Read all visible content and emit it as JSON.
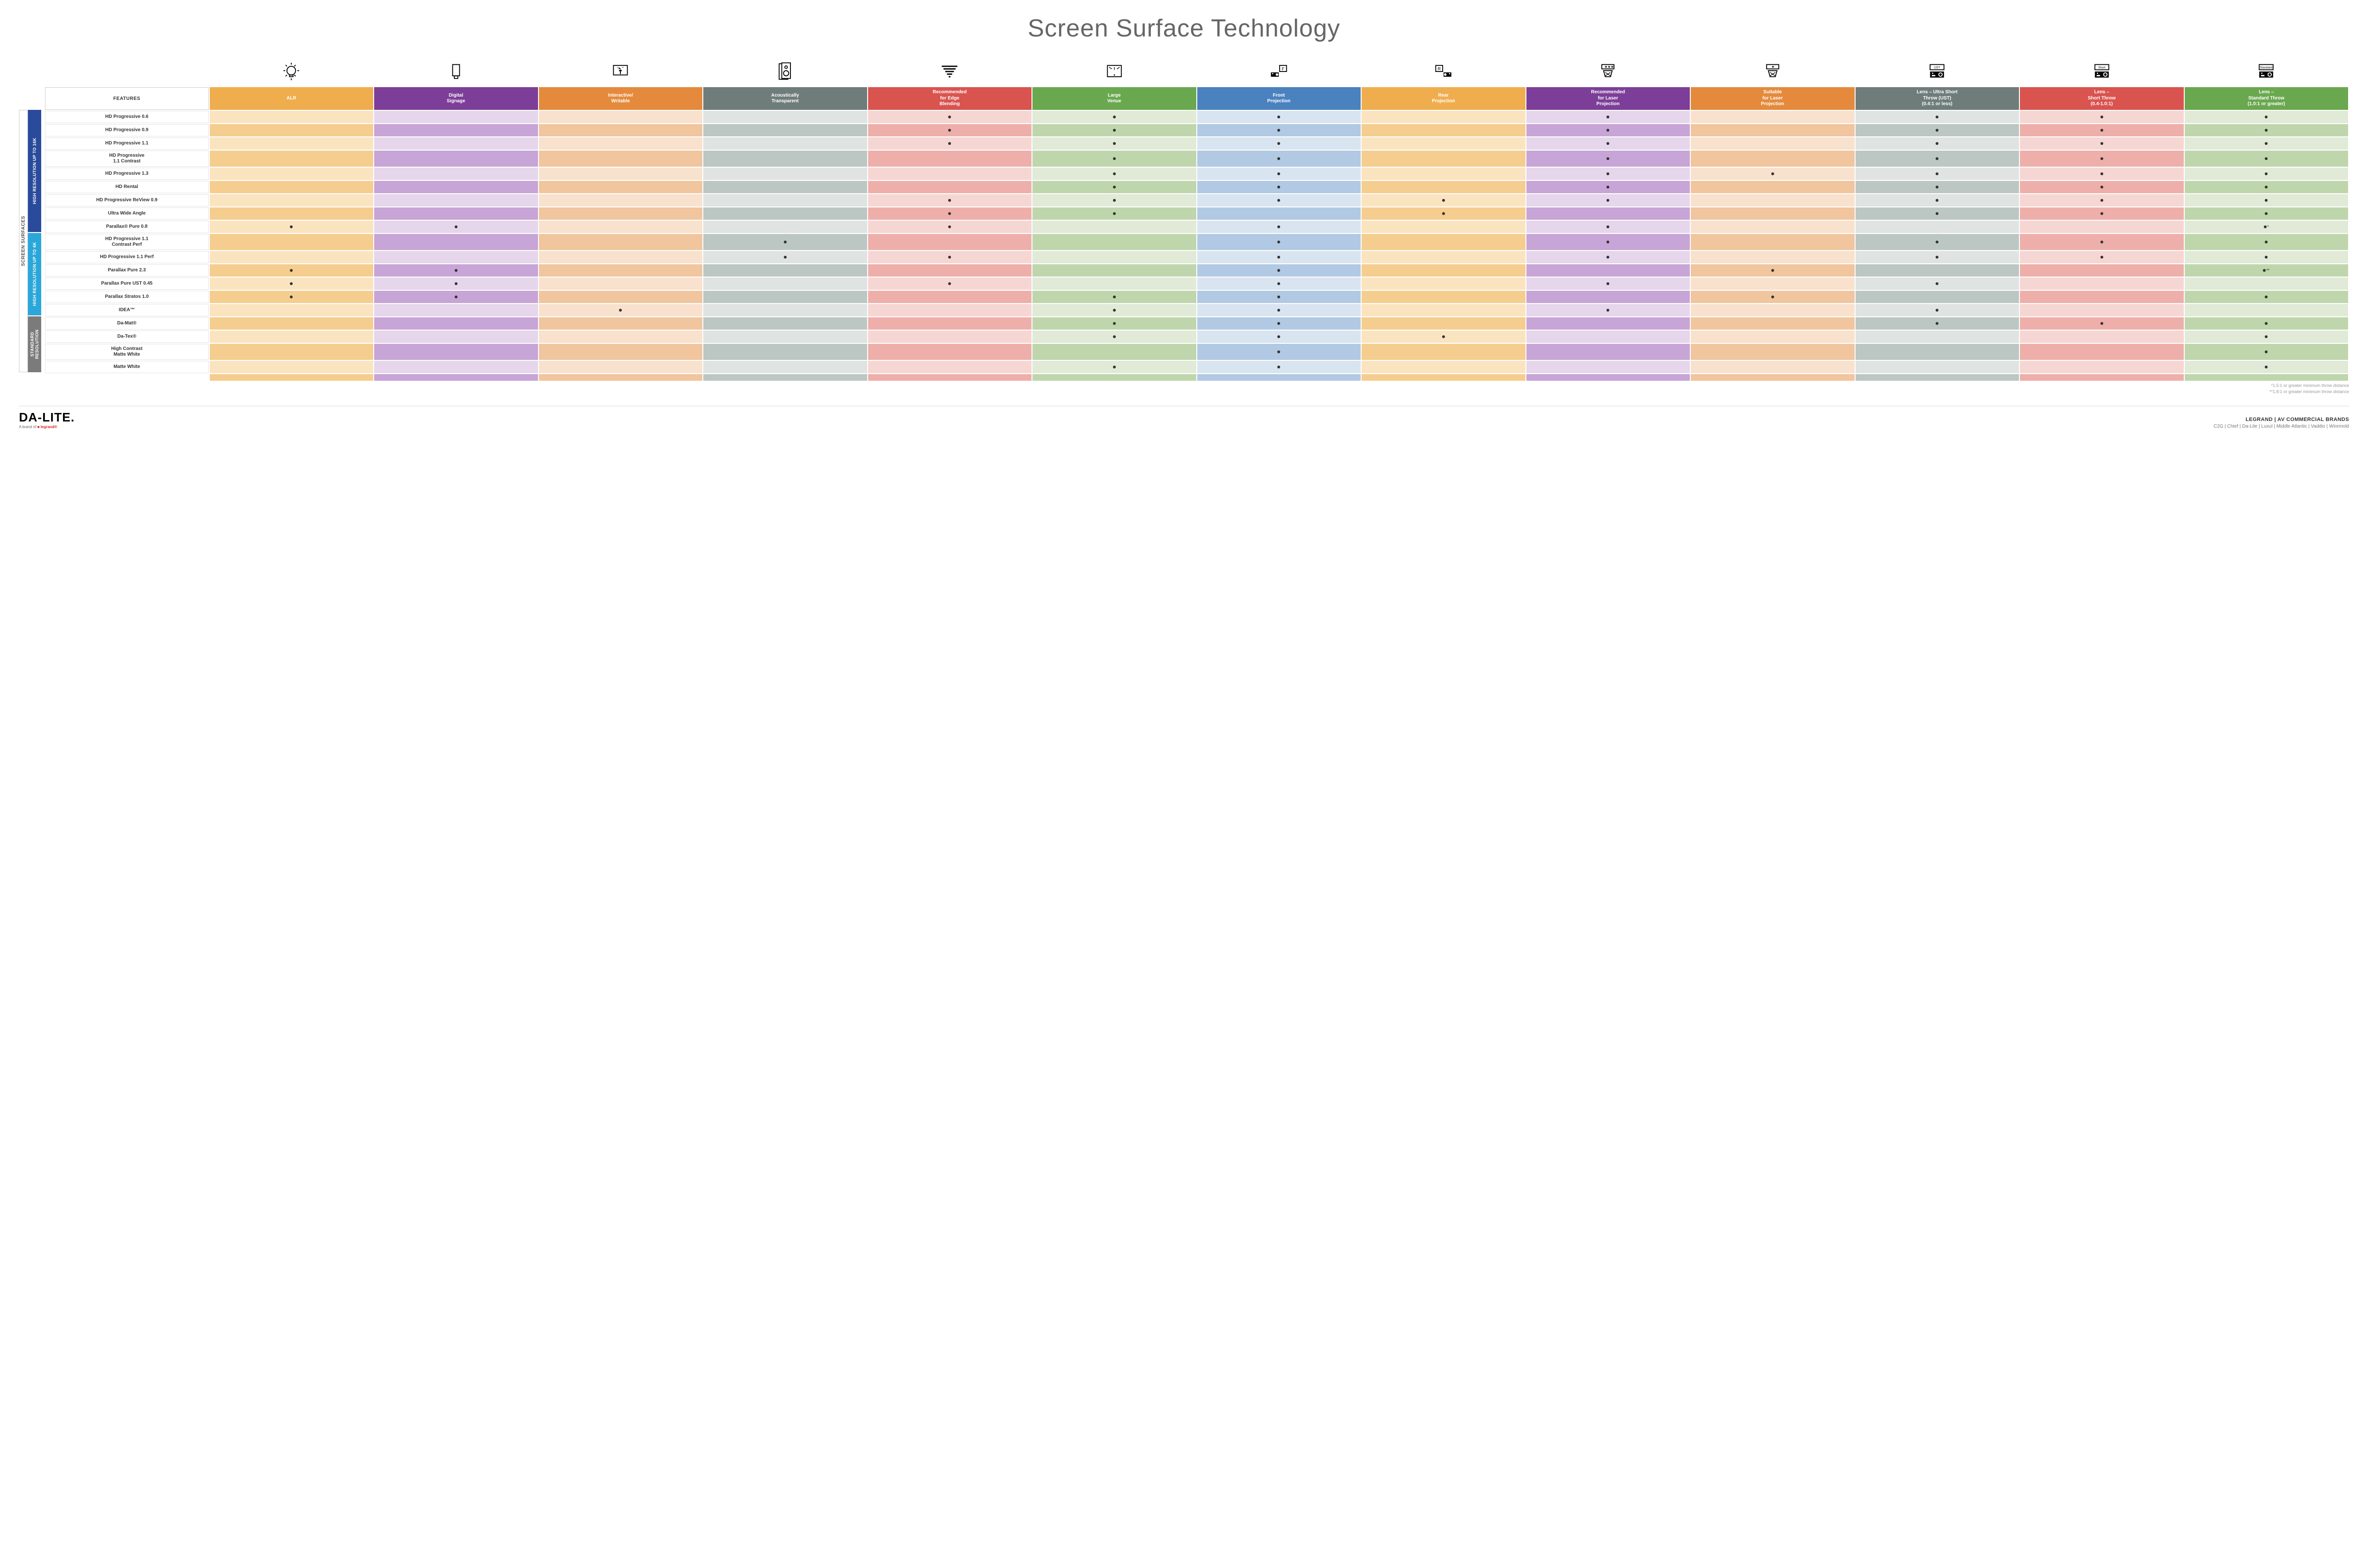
{
  "title": "Screen Surface Technology",
  "features_label": "FEATURES",
  "side_label": "SCREEN SURFACES",
  "colors": {
    "group_16k": "#2a4b9b",
    "group_4k": "#2aa7d8",
    "group_std": "#7b7b7b"
  },
  "columns": [
    {
      "key": "alr",
      "label": "ALR",
      "header_bg": "#f0ad4e",
      "light": "#fae4c0",
      "dark": "#f5cd8e",
      "icon": "bulb"
    },
    {
      "key": "signage",
      "label": "Digital\nSignage",
      "header_bg": "#7c3e98",
      "light": "#e5d6eb",
      "dark": "#c7a5d6",
      "icon": "signage"
    },
    {
      "key": "writable",
      "label": "Interactive/\nWritable",
      "header_bg": "#e58a3c",
      "light": "#f8e1cd",
      "dark": "#f1c59d",
      "icon": "touch"
    },
    {
      "key": "acoustic",
      "label": "Acoustically\nTransparent",
      "header_bg": "#6f7d7a",
      "light": "#dfe3e2",
      "dark": "#bcc7c4",
      "icon": "speaker"
    },
    {
      "key": "edge",
      "label": "Recommended\nfor Edge\nBlending",
      "header_bg": "#d9534f",
      "light": "#f6d6d3",
      "dark": "#eeafaa",
      "icon": "blend"
    },
    {
      "key": "large",
      "label": "Large\nVenue",
      "header_bg": "#6aa84f",
      "light": "#e0ead7",
      "dark": "#bfd6ad",
      "icon": "venue"
    },
    {
      "key": "front",
      "label": "Front\nProjection",
      "header_bg": "#4a81bf",
      "light": "#d9e4f1",
      "dark": "#b1c9e3",
      "icon": "front"
    },
    {
      "key": "rear",
      "label": "Rear\nProjection",
      "header_bg": "#f0ad4e",
      "light": "#fae4c0",
      "dark": "#f5cd8e",
      "icon": "rear"
    },
    {
      "key": "reclaser",
      "label": "Recommended\nfor Laser\nProjection",
      "header_bg": "#7c3e98",
      "light": "#e5d6eb",
      "dark": "#c7a5d6",
      "icon": "laser_rec"
    },
    {
      "key": "suitlaser",
      "label": "Suitable\nfor Laser\nProjection",
      "header_bg": "#e58a3c",
      "light": "#f8e1cd",
      "dark": "#f1c59d",
      "icon": "laser_suit"
    },
    {
      "key": "ust",
      "label": "Lens – Ultra Short\nThrow (UST)\n(0.4:1 or less)",
      "header_bg": "#6f7d7a",
      "light": "#dfe3e2",
      "dark": "#bcc7c4",
      "icon": "ust"
    },
    {
      "key": "short",
      "label": "Lens –\nShort Throw\n(0.4-1.0:1)",
      "header_bg": "#d9534f",
      "light": "#f6d6d3",
      "dark": "#eeafaa",
      "icon": "short"
    },
    {
      "key": "std",
      "label": "Lens –\nStandard Throw\n(1.0:1 or greater)",
      "header_bg": "#6aa84f",
      "light": "#e0ead7",
      "dark": "#bfd6ad",
      "icon": "standard"
    }
  ],
  "groups": [
    {
      "label": "HIGH RESOLUTION UP TO 16K",
      "color_key": "group_16k",
      "rows": [
        {
          "label": "HD Progressive 0.6",
          "marks": {
            "edge": "•",
            "large": "•",
            "front": "•",
            "reclaser": "•",
            "ust": "•",
            "short": "•",
            "std": "•"
          }
        },
        {
          "label": "HD Progressive 0.9",
          "marks": {
            "edge": "•",
            "large": "•",
            "front": "•",
            "reclaser": "•",
            "ust": "•",
            "short": "•",
            "std": "•"
          }
        },
        {
          "label": "HD Progressive 1.1",
          "marks": {
            "edge": "•",
            "large": "•",
            "front": "•",
            "reclaser": "•",
            "ust": "•",
            "short": "•",
            "std": "•"
          }
        },
        {
          "label": "HD Progressive\n1.1 Contrast",
          "marks": {
            "large": "•",
            "front": "•",
            "reclaser": "•",
            "ust": "•",
            "short": "•",
            "std": "•"
          }
        },
        {
          "label": "HD Progressive 1.3",
          "marks": {
            "large": "•",
            "front": "•",
            "reclaser": "•",
            "suitlaser": "•",
            "ust": "•",
            "short": "•",
            "std": "•"
          }
        },
        {
          "label": "HD Rental",
          "marks": {
            "large": "•",
            "front": "•",
            "reclaser": "•",
            "ust": "•",
            "short": "•",
            "std": "•"
          }
        },
        {
          "label": "HD Progressive ReView 0.9",
          "marks": {
            "edge": "•",
            "large": "•",
            "front": "•",
            "rear": "•",
            "reclaser": "•",
            "ust": "•",
            "short": "•",
            "std": "•"
          }
        },
        {
          "label": "Ultra Wide Angle",
          "marks": {
            "edge": "•",
            "large": "•",
            "rear": "•",
            "ust": "•",
            "short": "•",
            "std": "•"
          }
        },
        {
          "label": "Parallax® Pure 0.8",
          "marks": {
            "alr": "•",
            "signage": "•",
            "edge": "•",
            "front": "•",
            "reclaser": "•",
            "std": "•*"
          }
        }
      ]
    },
    {
      "label": "HIGH RESOLUTION UP TO 4K",
      "color_key": "group_4k",
      "rows": [
        {
          "label": "HD Progressive 1.1\nContrast Perf",
          "marks": {
            "acoustic": "•",
            "front": "•",
            "reclaser": "•",
            "ust": "•",
            "short": "•",
            "std": "•"
          }
        },
        {
          "label": "HD Progressive 1.1 Perf",
          "marks": {
            "acoustic": "•",
            "edge": "•",
            "front": "•",
            "reclaser": "•",
            "ust": "•",
            "short": "•",
            "std": "•"
          }
        },
        {
          "label": "Parallax Pure 2.3",
          "marks": {
            "alr": "•",
            "signage": "•",
            "front": "•",
            "suitlaser": "•",
            "std": "•**"
          }
        },
        {
          "label": "Parallax Pure UST 0.45",
          "marks": {
            "alr": "•",
            "signage": "•",
            "edge": "•",
            "front": "•",
            "reclaser": "•",
            "ust": "•"
          }
        },
        {
          "label": "Parallax Stratos 1.0",
          "marks": {
            "alr": "•",
            "signage": "•",
            "large": "•",
            "front": "•",
            "suitlaser": "•",
            "std": "•"
          }
        },
        {
          "label": "IDEA™",
          "marks": {
            "writable": "•",
            "large": "•",
            "front": "•",
            "reclaser": "•",
            "ust": "•"
          }
        }
      ]
    },
    {
      "label": "STANDARD\nRESOLUTION",
      "color_key": "group_std",
      "rows": [
        {
          "label": "Da-Mat®",
          "marks": {
            "large": "•",
            "front": "•",
            "ust": "•",
            "short": "•",
            "std": "•"
          }
        },
        {
          "label": "Da-Tex®",
          "marks": {
            "large": "•",
            "front": "•",
            "rear": "•",
            "std": "•"
          }
        },
        {
          "label": "High Contrast\nMatte White",
          "marks": {
            "front": "•",
            "std": "•"
          }
        },
        {
          "label": "Matte White",
          "marks": {
            "large": "•",
            "front": "•",
            "std": "•"
          }
        }
      ]
    }
  ],
  "footnotes": [
    "*1.5:1 or greater minimum throw distance",
    "**1.8:1 or greater minimum throw distance"
  ],
  "footer": {
    "logo": "DA-LITE.",
    "logo_tag_prefix": "A brand of ",
    "logo_tag_brand": "legrand®",
    "right_title": "LEGRAND | AV COMMERCIAL BRANDS",
    "brands": [
      "C2G",
      "Chief",
      "Da-Lite",
      "Luxul",
      "Middle Atlantic",
      "Vaddio",
      "Wiremold"
    ]
  }
}
